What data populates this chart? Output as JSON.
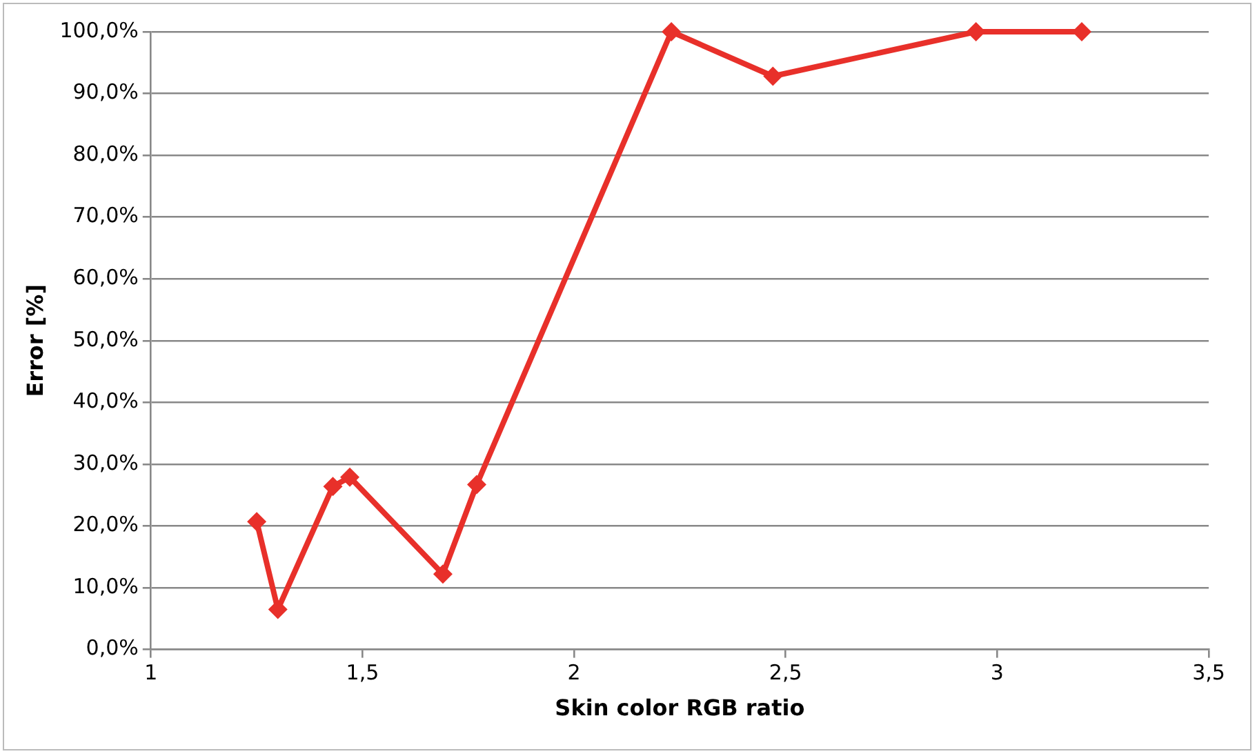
{
  "chart_data": {
    "type": "line",
    "xlabel": "Skin color RGB ratio",
    "ylabel": "Error [%]",
    "x": [
      1.25,
      1.3,
      1.43,
      1.47,
      1.69,
      1.77,
      2.23,
      2.47,
      2.95,
      3.2
    ],
    "series": [
      {
        "color": "#e8302a",
        "values": [
          20.7,
          6.5,
          26.4,
          27.9,
          12.2,
          26.7,
          100,
          92.8,
          100,
          100
        ]
      }
    ],
    "xlim": [
      1,
      3.5
    ],
    "xticks": [
      1,
      {
        "value": 1.5,
        "label": "1,5"
      },
      2,
      {
        "value": 2.5,
        "label": "2,5"
      },
      3,
      {
        "value": 3.5,
        "label": "3,5"
      }
    ],
    "ylim": [
      0,
      100
    ],
    "yticks": [
      {
        "value": 0,
        "label": "0,0%"
      },
      {
        "value": 10,
        "label": "10,0%"
      },
      {
        "value": 20,
        "label": "20,0%"
      },
      {
        "value": 30,
        "label": "30,0%"
      },
      {
        "value": 40,
        "label": "40,0%"
      },
      {
        "value": 50,
        "label": "50,0%"
      },
      {
        "value": 60,
        "label": "60,0%"
      },
      {
        "value": 70,
        "label": "70,0%"
      },
      {
        "value": 80,
        "label": "80,0%"
      },
      {
        "value": 90,
        "label": "90,0%"
      },
      {
        "value": 100,
        "label": "100,0%"
      }
    ],
    "grid": "y",
    "legend": false,
    "marker": "diamond",
    "line_style": "solid"
  }
}
